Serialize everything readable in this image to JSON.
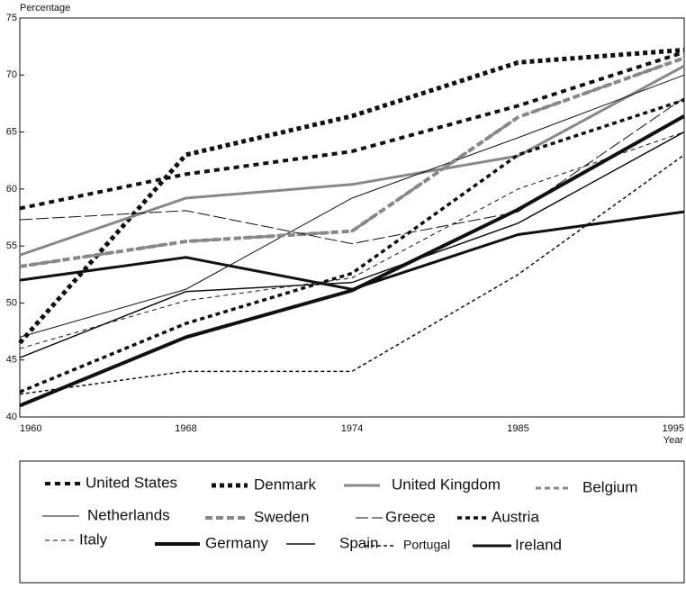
{
  "chart_data": {
    "type": "line",
    "y_label": "Percentage",
    "x_label": "Year",
    "categories": [
      "1960",
      "1968",
      "1974",
      "1985",
      "1995"
    ],
    "ylim": [
      40,
      75
    ],
    "yticks": [
      40,
      45,
      50,
      55,
      60,
      65,
      70,
      75
    ],
    "series": [
      {
        "name": "United States",
        "color": "#111111",
        "width": 4,
        "dash": "6,5",
        "values": [
          58.3,
          61.3,
          63.3,
          67.3,
          72
        ]
      },
      {
        "name": "Denmark",
        "color": "#111111",
        "width": 5,
        "dash": "5,4",
        "values": [
          46.5,
          63,
          66.4,
          71.1,
          72.2
        ]
      },
      {
        "name": "United Kingdom",
        "color": "#888888",
        "width": 3,
        "dash": "none",
        "values": [
          54.2,
          59.2,
          60.4,
          62.9,
          70.8
        ]
      },
      {
        "name": "Belgium",
        "color": "#888888",
        "width": 3,
        "dash": "6,4",
        "values": [
          53.2,
          55.4,
          56.3,
          66.3,
          71.5
        ]
      },
      {
        "name": "Netherlands",
        "color": "#111111",
        "width": 1,
        "dash": "none",
        "values": [
          47,
          51.2,
          59.2,
          64.5,
          70
        ]
      },
      {
        "name": "Sweden",
        "color": "#888888",
        "width": 4,
        "dash": "8,4",
        "values": [
          53.2,
          55.4,
          56.3,
          66.3,
          71.5
        ]
      },
      {
        "name": "Greece",
        "color": "#111111",
        "width": 1,
        "dash": "14,4",
        "values": [
          57.3,
          58.1,
          55.2,
          58,
          68
        ]
      },
      {
        "name": "Austria",
        "color": "#111111",
        "width": 3.5,
        "dash": "5,4",
        "values": [
          42.2,
          48.2,
          52.6,
          63,
          67.8
        ]
      },
      {
        "name": "Italy",
        "color": "#111111",
        "width": 1,
        "dash": "5,4",
        "values": [
          46,
          50.2,
          52.2,
          60,
          65
        ]
      },
      {
        "name": "Germany",
        "color": "#111111",
        "width": 4,
        "dash": "none",
        "values": [
          41,
          47,
          51.1,
          58.2,
          66.4
        ]
      },
      {
        "name": "Spain",
        "color": "#111111",
        "width": 1.5,
        "dash": "none",
        "values": [
          45.2,
          51,
          51.8,
          57,
          65
        ]
      },
      {
        "name": "Portugal",
        "color": "#111111",
        "width": 1.5,
        "dash": "4,3",
        "values": [
          42,
          44,
          44,
          52.5,
          63
        ]
      },
      {
        "name": "Ireland",
        "color": "#111111",
        "width": 3,
        "dash": "none",
        "values": [
          52,
          54,
          51.2,
          56,
          58
        ]
      }
    ]
  }
}
